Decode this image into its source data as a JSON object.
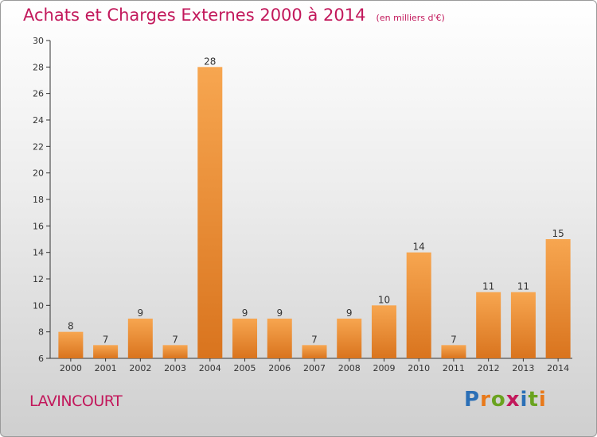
{
  "header": {
    "title": "Achats et Charges Externes 2000 à 2014",
    "unit": "(en milliers d'€)"
  },
  "footer": {
    "commune": "LAVINCOURT",
    "logo_text": "Proxiti"
  },
  "colors": {
    "bar_light": "#f7a650",
    "bar_dark": "#d9741e",
    "title": "#c2185b",
    "axis": "#333333"
  },
  "chart_data": {
    "type": "bar",
    "categories": [
      "2000",
      "2001",
      "2002",
      "2003",
      "2004",
      "2005",
      "2006",
      "2007",
      "2008",
      "2009",
      "2010",
      "2011",
      "2012",
      "2013",
      "2014"
    ],
    "values": [
      8,
      7,
      9,
      7,
      28,
      9,
      9,
      7,
      9,
      10,
      14,
      7,
      11,
      11,
      15
    ],
    "data_labels": [
      "8",
      "7",
      "9",
      "7",
      "28",
      "9",
      "9",
      "7",
      "9",
      "10",
      "14",
      "7",
      "11",
      "11",
      "15"
    ],
    "title": "Achats et Charges Externes 2000 à 2014",
    "unit": "(en milliers d'€)",
    "xlabel": "",
    "ylabel": "",
    "ylim": [
      6,
      30
    ],
    "yticks": [
      6,
      8,
      10,
      12,
      14,
      16,
      18,
      20,
      22,
      24,
      26,
      28,
      30
    ],
    "ytick_labels": [
      "6",
      "8",
      "10",
      "12",
      "14",
      "16",
      "18",
      "20",
      "22",
      "24",
      "26",
      "28",
      "30"
    ],
    "grid": false,
    "legend": "none"
  }
}
